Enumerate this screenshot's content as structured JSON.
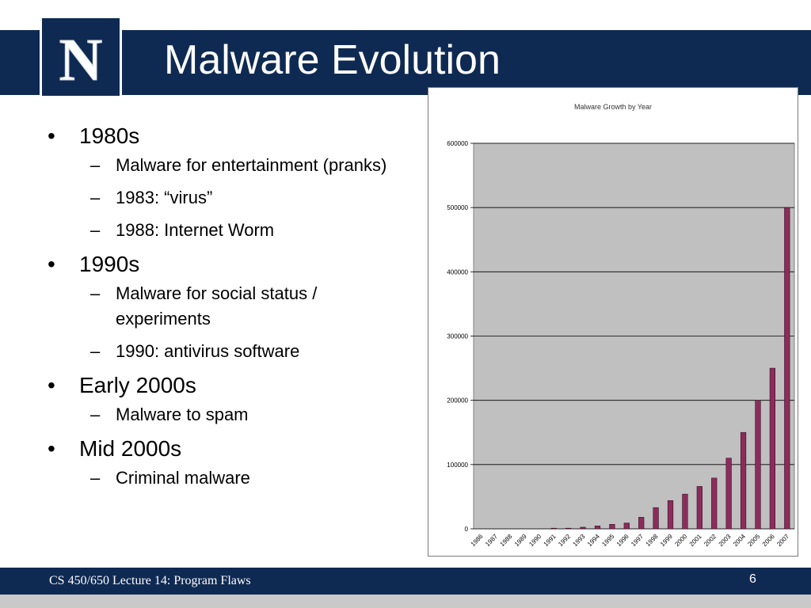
{
  "slide": {
    "title": "Malware Evolution",
    "logo_letter": "N",
    "bullet_glyph": "•",
    "sub_glyph": "–",
    "bullets": [
      {
        "label": "1980s",
        "sub": [
          "Malware for entertainment (pranks)",
          "1983: “virus”",
          "1988: Internet Worm"
        ]
      },
      {
        "label": "1990s",
        "sub": [
          "Malware for social status / experiments",
          "1990: antivirus software"
        ]
      },
      {
        "label": "Early 2000s",
        "sub": [
          "Malware to spam"
        ]
      },
      {
        "label": "Mid 2000s",
        "sub": [
          "Criminal malware"
        ]
      }
    ]
  },
  "footer": {
    "course": "CS 450/650 Lecture 14: Program Flaws",
    "page": "6"
  },
  "colors": {
    "brand_navy": "#0f2a52",
    "bar_fill": "#8b2d5c",
    "plot_bg": "#c0c0c0"
  },
  "chart_data": {
    "type": "bar",
    "title": "Malware Growth by Year",
    "xlabel": "",
    "ylabel": "",
    "ylim": [
      0,
      600000
    ],
    "yticks": [
      0,
      100000,
      200000,
      300000,
      400000,
      500000,
      600000
    ],
    "grid": true,
    "legend": "none",
    "categories": [
      "1986",
      "1987",
      "1988",
      "1989",
      "1990",
      "1991",
      "1992",
      "1993",
      "1994",
      "1995",
      "1996",
      "1997",
      "1998",
      "1999",
      "2000",
      "2001",
      "2002",
      "2003",
      "2004",
      "2005",
      "2006",
      "2007"
    ],
    "values": [
      0,
      0,
      0,
      0,
      0,
      500,
      1000,
      2500,
      4500,
      7000,
      9000,
      18000,
      33000,
      44000,
      54000,
      66000,
      79000,
      110000,
      150000,
      200000,
      250000,
      500000
    ]
  }
}
